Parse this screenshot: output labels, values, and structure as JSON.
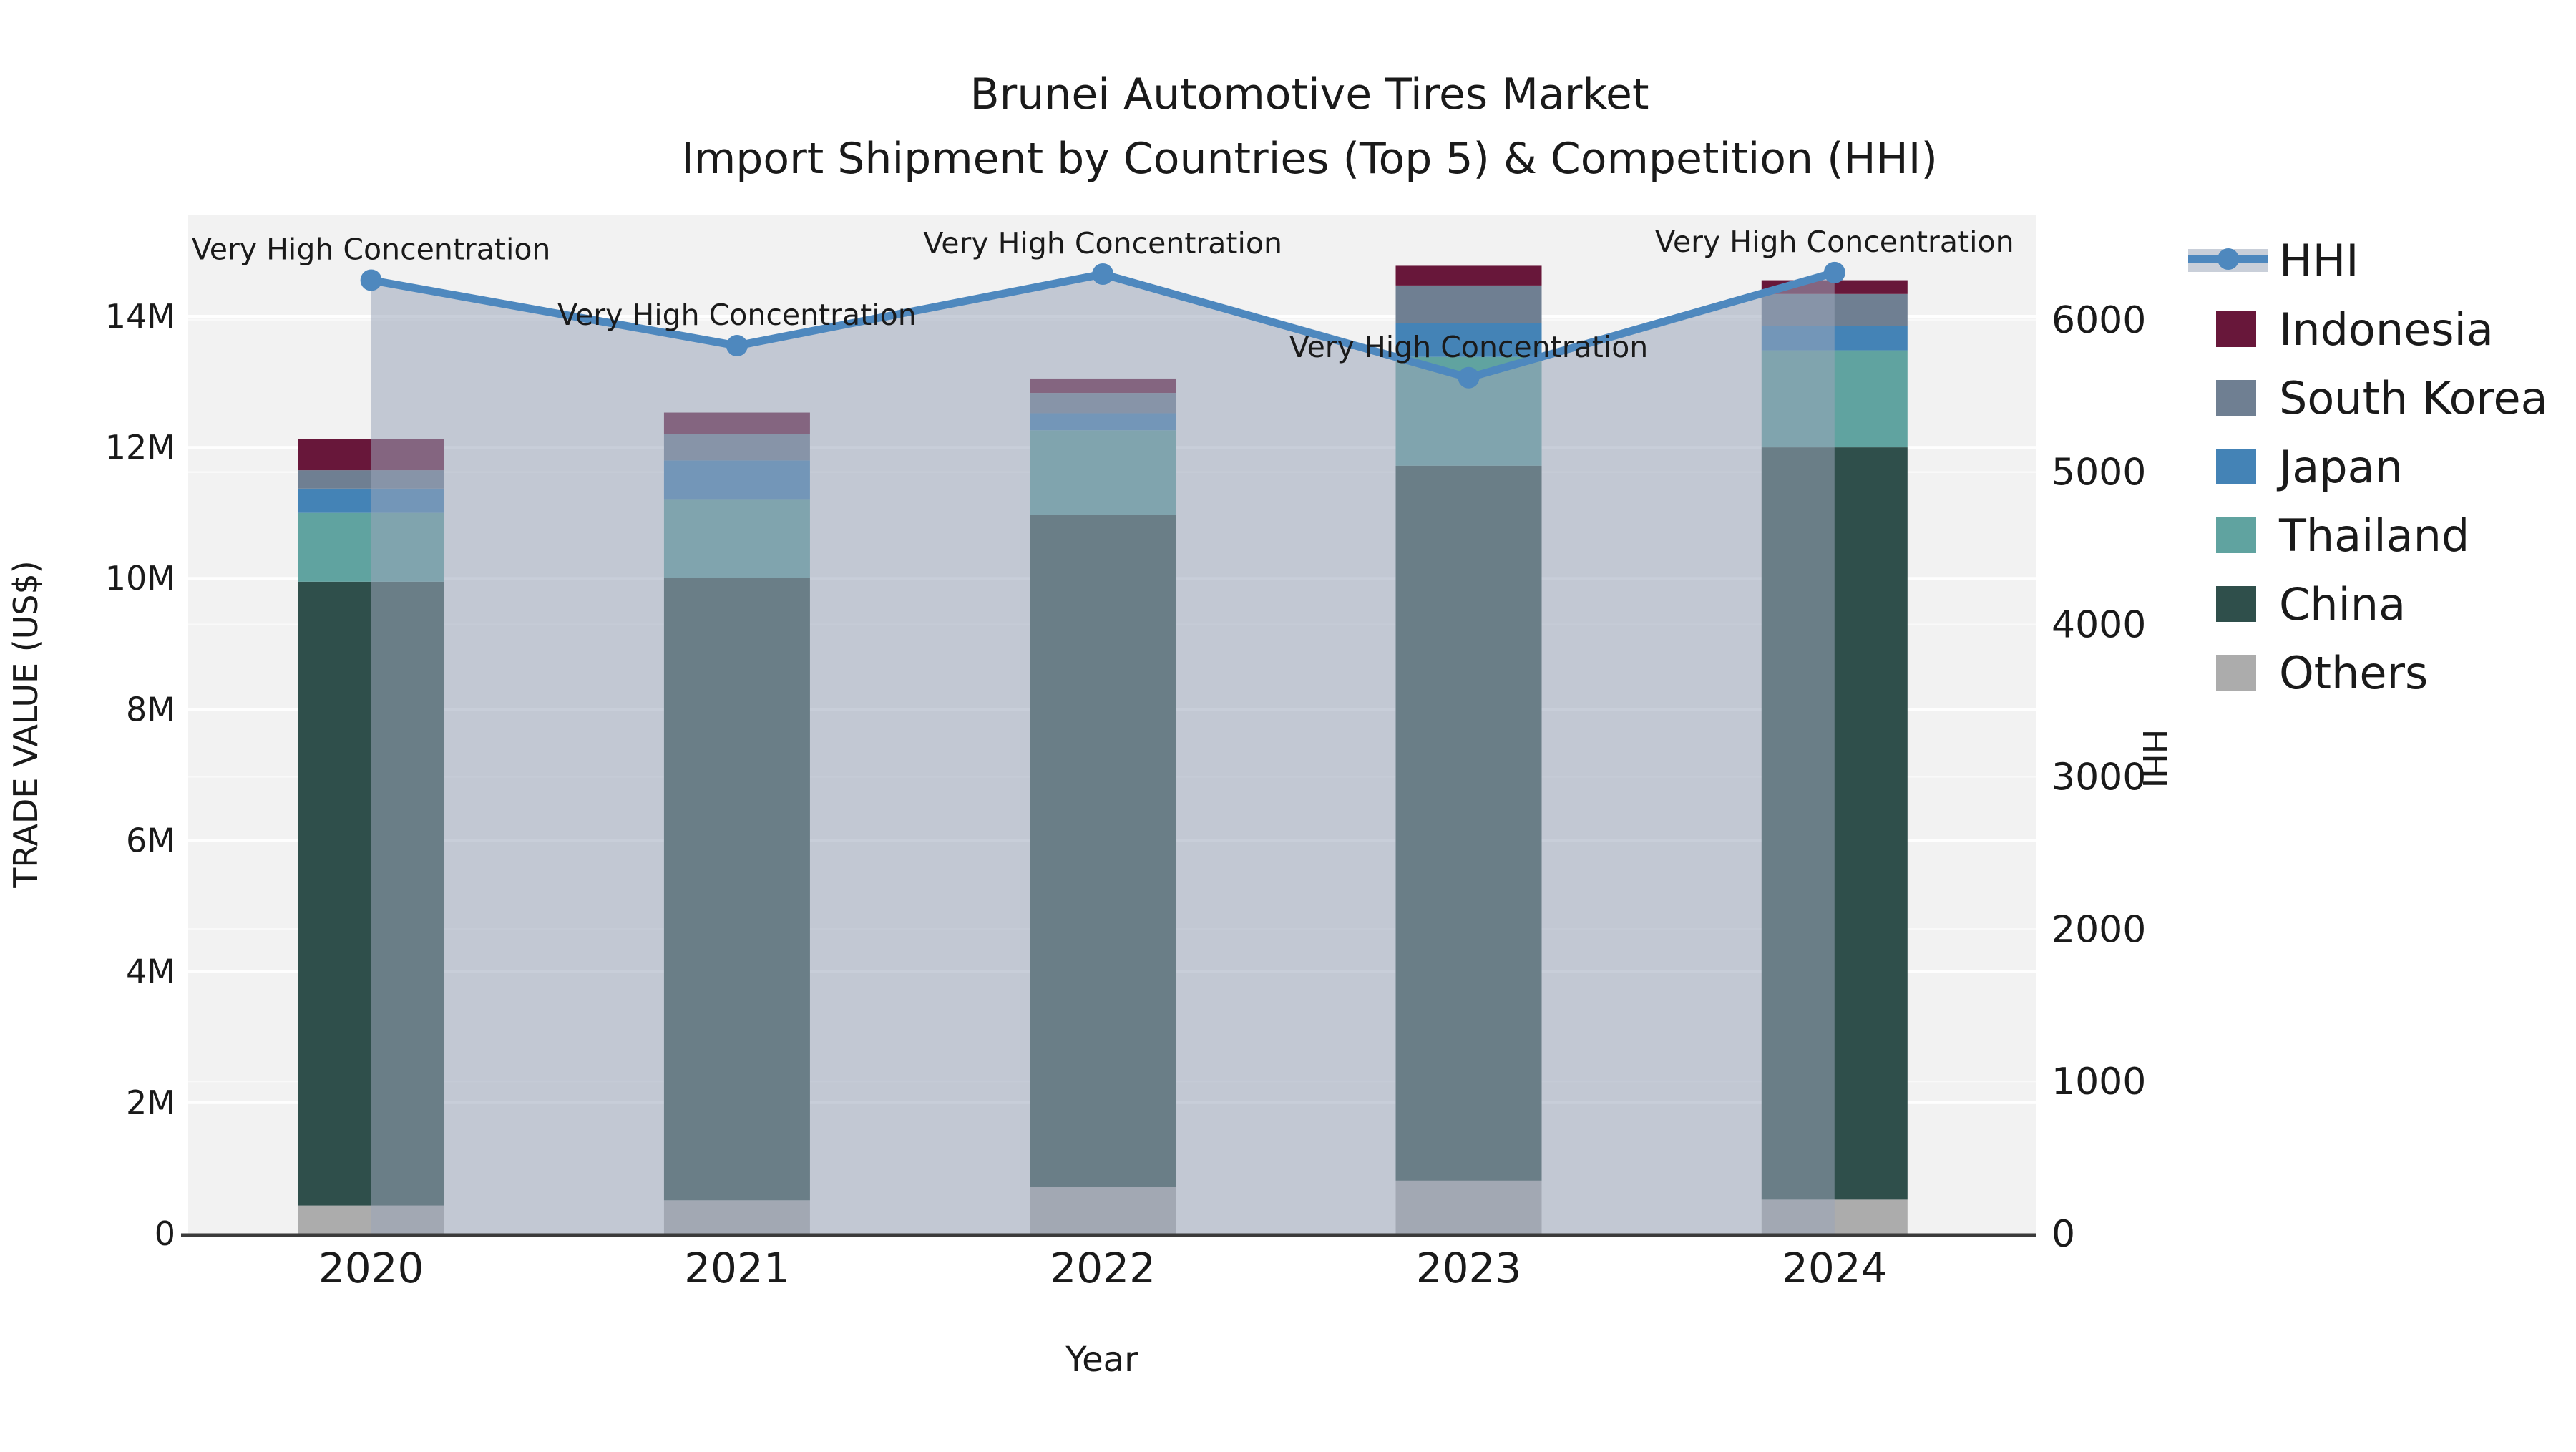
{
  "title": {
    "line1": "Brunei Automotive Tires Market",
    "line2": "Import Shipment by Countries (Top 5) & Competition (HHI)"
  },
  "axes": {
    "x_label": "Year",
    "y_left_label": "TRADE VALUE (US$)",
    "y_right_label": "HHI",
    "y_left_ticks": [
      {
        "value": 0,
        "label": "0"
      },
      {
        "value": 2000000,
        "label": "2M"
      },
      {
        "value": 4000000,
        "label": "4M"
      },
      {
        "value": 6000000,
        "label": "6M"
      },
      {
        "value": 8000000,
        "label": "8M"
      },
      {
        "value": 10000000,
        "label": "10M"
      },
      {
        "value": 12000000,
        "label": "12M"
      },
      {
        "value": 14000000,
        "label": "14M"
      }
    ],
    "y_right_ticks": [
      {
        "value": 0,
        "label": "0"
      },
      {
        "value": 1000,
        "label": "1000"
      },
      {
        "value": 2000,
        "label": "2000"
      },
      {
        "value": 3000,
        "label": "3000"
      },
      {
        "value": 4000,
        "label": "4000"
      },
      {
        "value": 5000,
        "label": "5000"
      },
      {
        "value": 6000,
        "label": "6000"
      }
    ]
  },
  "legend": {
    "items": [
      {
        "label": "HHI",
        "type": "line",
        "color": "#4E88BE",
        "band_color": "#C9CFD9"
      },
      {
        "label": "Indonesia",
        "type": "swatch",
        "color": "#68173A"
      },
      {
        "label": "South Korea",
        "type": "swatch",
        "color": "#6F7F92"
      },
      {
        "label": "Japan",
        "type": "swatch",
        "color": "#4483B6"
      },
      {
        "label": "Thailand",
        "type": "swatch",
        "color": "#60A3A0"
      },
      {
        "label": "China",
        "type": "swatch",
        "color": "#2F4F4B"
      },
      {
        "label": "Others",
        "type": "swatch",
        "color": "#ACACAC"
      }
    ]
  },
  "chart_data": {
    "type": "bar",
    "subtype": "stacked-bars-with-secondary-line",
    "categories": [
      "2020",
      "2021",
      "2022",
      "2023",
      "2024"
    ],
    "bar_value_unit": "US$",
    "series": [
      {
        "name": "Others",
        "color": "#ACACAC",
        "values": [
          430000,
          510000,
          720000,
          810000,
          520000
        ]
      },
      {
        "name": "China",
        "color": "#2F4F4B",
        "values": [
          9520000,
          9500000,
          10250000,
          10910000,
          11480000
        ]
      },
      {
        "name": "Thailand",
        "color": "#60A3A0",
        "values": [
          1050000,
          1200000,
          1290000,
          1660000,
          1480000
        ]
      },
      {
        "name": "Japan",
        "color": "#4483B6",
        "values": [
          370000,
          590000,
          260000,
          520000,
          370000
        ]
      },
      {
        "name": "South Korea",
        "color": "#6F7F92",
        "values": [
          280000,
          400000,
          310000,
          570000,
          490000
        ]
      },
      {
        "name": "Indonesia",
        "color": "#68173A",
        "values": [
          480000,
          330000,
          220000,
          300000,
          210000
        ]
      }
    ],
    "bar_totals": [
      12130000,
      12530000,
      13050000,
      14770000,
      14550000
    ],
    "line": {
      "name": "HHI",
      "color": "#4E88BE",
      "area_fill": "#9AA6BA",
      "area_fill_opacity": 0.55,
      "values": [
        6260,
        5830,
        6300,
        5620,
        6310
      ],
      "point_annotations": [
        "Very High Concentration",
        "Very High Concentration",
        "Very High Concentration",
        "Very High Concentration",
        "Very High Concentration"
      ]
    },
    "title": "Brunei Automotive Tires Market — Import Shipment by Countries (Top 5) & Competition (HHI)",
    "xlabel": "Year",
    "ylabel_left": "TRADE VALUE (US$)",
    "ylabel_right": "HHI",
    "ylim_left": [
      0,
      15550000
    ],
    "ylim_right": [
      0,
      6690
    ],
    "grid": true,
    "legend_position": "right",
    "plot_background": "#F2F2F2",
    "grid_color": "#FFFFFF",
    "axis_line_color": "#3B3B3B"
  }
}
